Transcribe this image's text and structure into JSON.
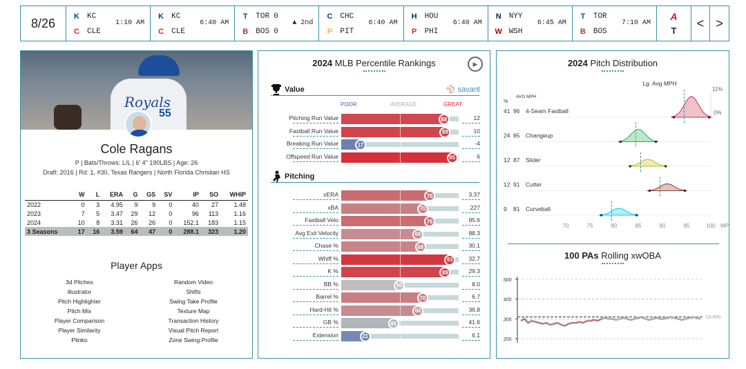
{
  "scoreboard": {
    "date": "8/26",
    "games": [
      {
        "away": "KC",
        "home": "CLE",
        "away_score": "",
        "home_score": "",
        "status": "1:10 AM",
        "away_color": "#004687",
        "home_color": "#e31937"
      },
      {
        "away": "KC",
        "home": "CLE",
        "away_score": "",
        "home_score": "",
        "status": "6:40 AM",
        "away_color": "#004687",
        "home_color": "#e31937"
      },
      {
        "away": "TOR",
        "home": "BOS",
        "away_score": "0",
        "home_score": "0",
        "status": "▲ 2nd",
        "away_color": "#134a8e",
        "home_color": "#bd3039"
      },
      {
        "away": "CHC",
        "home": "PIT",
        "away_score": "",
        "home_score": "",
        "status": "6:40 AM",
        "away_color": "#0e3386",
        "home_color": "#fdb827"
      },
      {
        "away": "HOU",
        "home": "PHI",
        "away_score": "",
        "home_score": "",
        "status": "6:40 AM",
        "away_color": "#002d62",
        "home_color": "#e81828"
      },
      {
        "away": "NYY",
        "home": "WSH",
        "away_score": "",
        "home_score": "",
        "status": "6:45 AM",
        "away_color": "#0c2340",
        "home_color": "#ab0003"
      },
      {
        "away": "TOR",
        "home": "BOS",
        "away_score": "",
        "home_score": "",
        "status": "7:10 AM",
        "away_color": "#134a8e",
        "home_color": "#bd3039"
      }
    ],
    "prev_label": "<",
    "next_label": ">"
  },
  "player": {
    "name": "Cole Ragans",
    "jersey_text": "Royals",
    "jersey_number": "55",
    "line1": "P | Bats/Throws: L/L | 6' 4\" 190LBS | Age: 26",
    "line2": "Draft: 2016 | Rd: 1, #30, Texas Rangers | North Florida Christian HS"
  },
  "stats": {
    "headers": [
      "",
      "W",
      "L",
      "ERA",
      "G",
      "GS",
      "SV",
      "IP",
      "SO",
      "WHIP"
    ],
    "rows": [
      [
        "2022",
        "0",
        "3",
        "4.95",
        "9",
        "9",
        "0",
        "40",
        "27",
        "1.48"
      ],
      [
        "2023",
        "7",
        "5",
        "3.47",
        "29",
        "12",
        "0",
        "96",
        "113",
        "1.16"
      ],
      [
        "2024",
        "10",
        "8",
        "3.31",
        "26",
        "26",
        "0",
        "152.1",
        "183",
        "1.15"
      ]
    ],
    "total": [
      "3 Seasons",
      "17",
      "16",
      "3.59",
      "64",
      "47",
      "0",
      "288.1",
      "323",
      "1.20"
    ]
  },
  "apps": {
    "title": "Player Apps",
    "left": [
      "3d Pitches",
      "illustrator",
      "Pitch Highlighter",
      "Pitch Mix",
      "Player Comparison",
      "Player Similarity",
      "Plinko"
    ],
    "right": [
      "Random Video",
      "Shifts",
      "Swing Take Profile",
      "Texture Map",
      "Transaction History",
      "Visual Pitch Report",
      "Zone Swing Profile"
    ]
  },
  "percentile": {
    "year": "2024",
    "title": "MLB Percentile Rankings",
    "value_section": "Value",
    "pitching_section": "Pitching",
    "savant_label": "savant",
    "scale": {
      "poor": "POOR",
      "average": "AVERAGE",
      "great": "GREAT"
    },
    "value_rows": [
      {
        "label": "Pitching Run Value",
        "pct": 88,
        "value": "12"
      },
      {
        "label": "Fastball Run Value",
        "pct": 89,
        "value": "10"
      },
      {
        "label": "Breaking Run Value",
        "pct": 17,
        "value": "-4"
      },
      {
        "label": "Offspeed Run Value",
        "pct": 95,
        "value": "6"
      }
    ],
    "pitching_rows": [
      {
        "label": "xERA",
        "pct": 76,
        "value": "3.37"
      },
      {
        "label": "xBA",
        "pct": 70,
        "value": ".227"
      },
      {
        "label": "Fastball Velo",
        "pct": 76,
        "value": "95.6"
      },
      {
        "label": "Avg Exit Velocity",
        "pct": 66,
        "value": "88.3"
      },
      {
        "label": "Chase %",
        "pct": 68,
        "value": "30.1"
      },
      {
        "label": "Whiff %",
        "pct": 93,
        "value": "32.7"
      },
      {
        "label": "K %",
        "pct": 89,
        "value": "29.3"
      },
      {
        "label": "BB %",
        "pct": 50,
        "value": "8.0"
      },
      {
        "label": "Barrel %",
        "pct": 70,
        "value": "6.7"
      },
      {
        "label": "Hard-Hit %",
        "pct": 66,
        "value": "36.8"
      },
      {
        "label": "GB %",
        "pct": 45,
        "value": "41.6"
      },
      {
        "label": "Extension",
        "pct": 21,
        "value": "6.1"
      }
    ]
  },
  "pitch_dist": {
    "year": "2024",
    "title": "Pitch Distribution",
    "lg_avg_label": "Lg. Avg MPH",
    "pct_header": "%",
    "mph_header": "AVG MPH",
    "max_pct_label": "11%",
    "min_pct_label": "0%",
    "xaxis": [
      "70",
      "75",
      "80",
      "85",
      "90",
      "95",
      "100"
    ],
    "xunit": "MPH",
    "pitches": [
      {
        "name": "4-Seam Fastball",
        "pct": "41",
        "mph": "96",
        "color": "#d22d49",
        "lg": 94.5
      },
      {
        "name": "Changeup",
        "pct": "24",
        "mph": "85",
        "color": "#1db053",
        "lg": 84.5
      },
      {
        "name": "Slider",
        "pct": "12",
        "mph": "87",
        "color": "#c3bd0e",
        "lg": 85.5
      },
      {
        "name": "Cutter",
        "pct": "12",
        "mph": "91",
        "color": "#933f2c",
        "lg": 89.5
      },
      {
        "name": "Curveball",
        "pct": "9",
        "mph": "81",
        "color": "#00d1ed",
        "lg": 79.5
      }
    ]
  },
  "rolling": {
    "count": "100",
    "unit": "PAs",
    "title": "Rolling xwOBA",
    "yticks": [
      ".500",
      ".400",
      ".300",
      ".200"
    ],
    "lg_label": "LG AVG",
    "lg_avg": 0.31,
    "series": [
      0.29,
      0.3,
      0.28,
      0.29,
      0.285,
      0.28,
      0.275,
      0.28,
      0.27,
      0.275,
      0.28,
      0.27,
      0.265,
      0.275,
      0.28,
      0.28,
      0.285,
      0.28,
      0.29,
      0.29,
      0.295,
      0.29,
      0.3,
      0.305,
      0.3,
      0.3,
      0.295,
      0.3,
      0.305,
      0.3,
      0.295,
      0.3,
      0.305,
      0.31,
      0.3,
      0.295,
      0.3,
      0.305,
      0.3,
      0.3,
      0.305,
      0.31,
      0.305,
      0.3,
      0.295,
      0.3,
      0.305,
      0.31,
      0.305,
      0.3
    ]
  },
  "colors": {
    "accent": "#3a8fa8",
    "great": "#d8212c",
    "poor": "#3f62ac"
  }
}
